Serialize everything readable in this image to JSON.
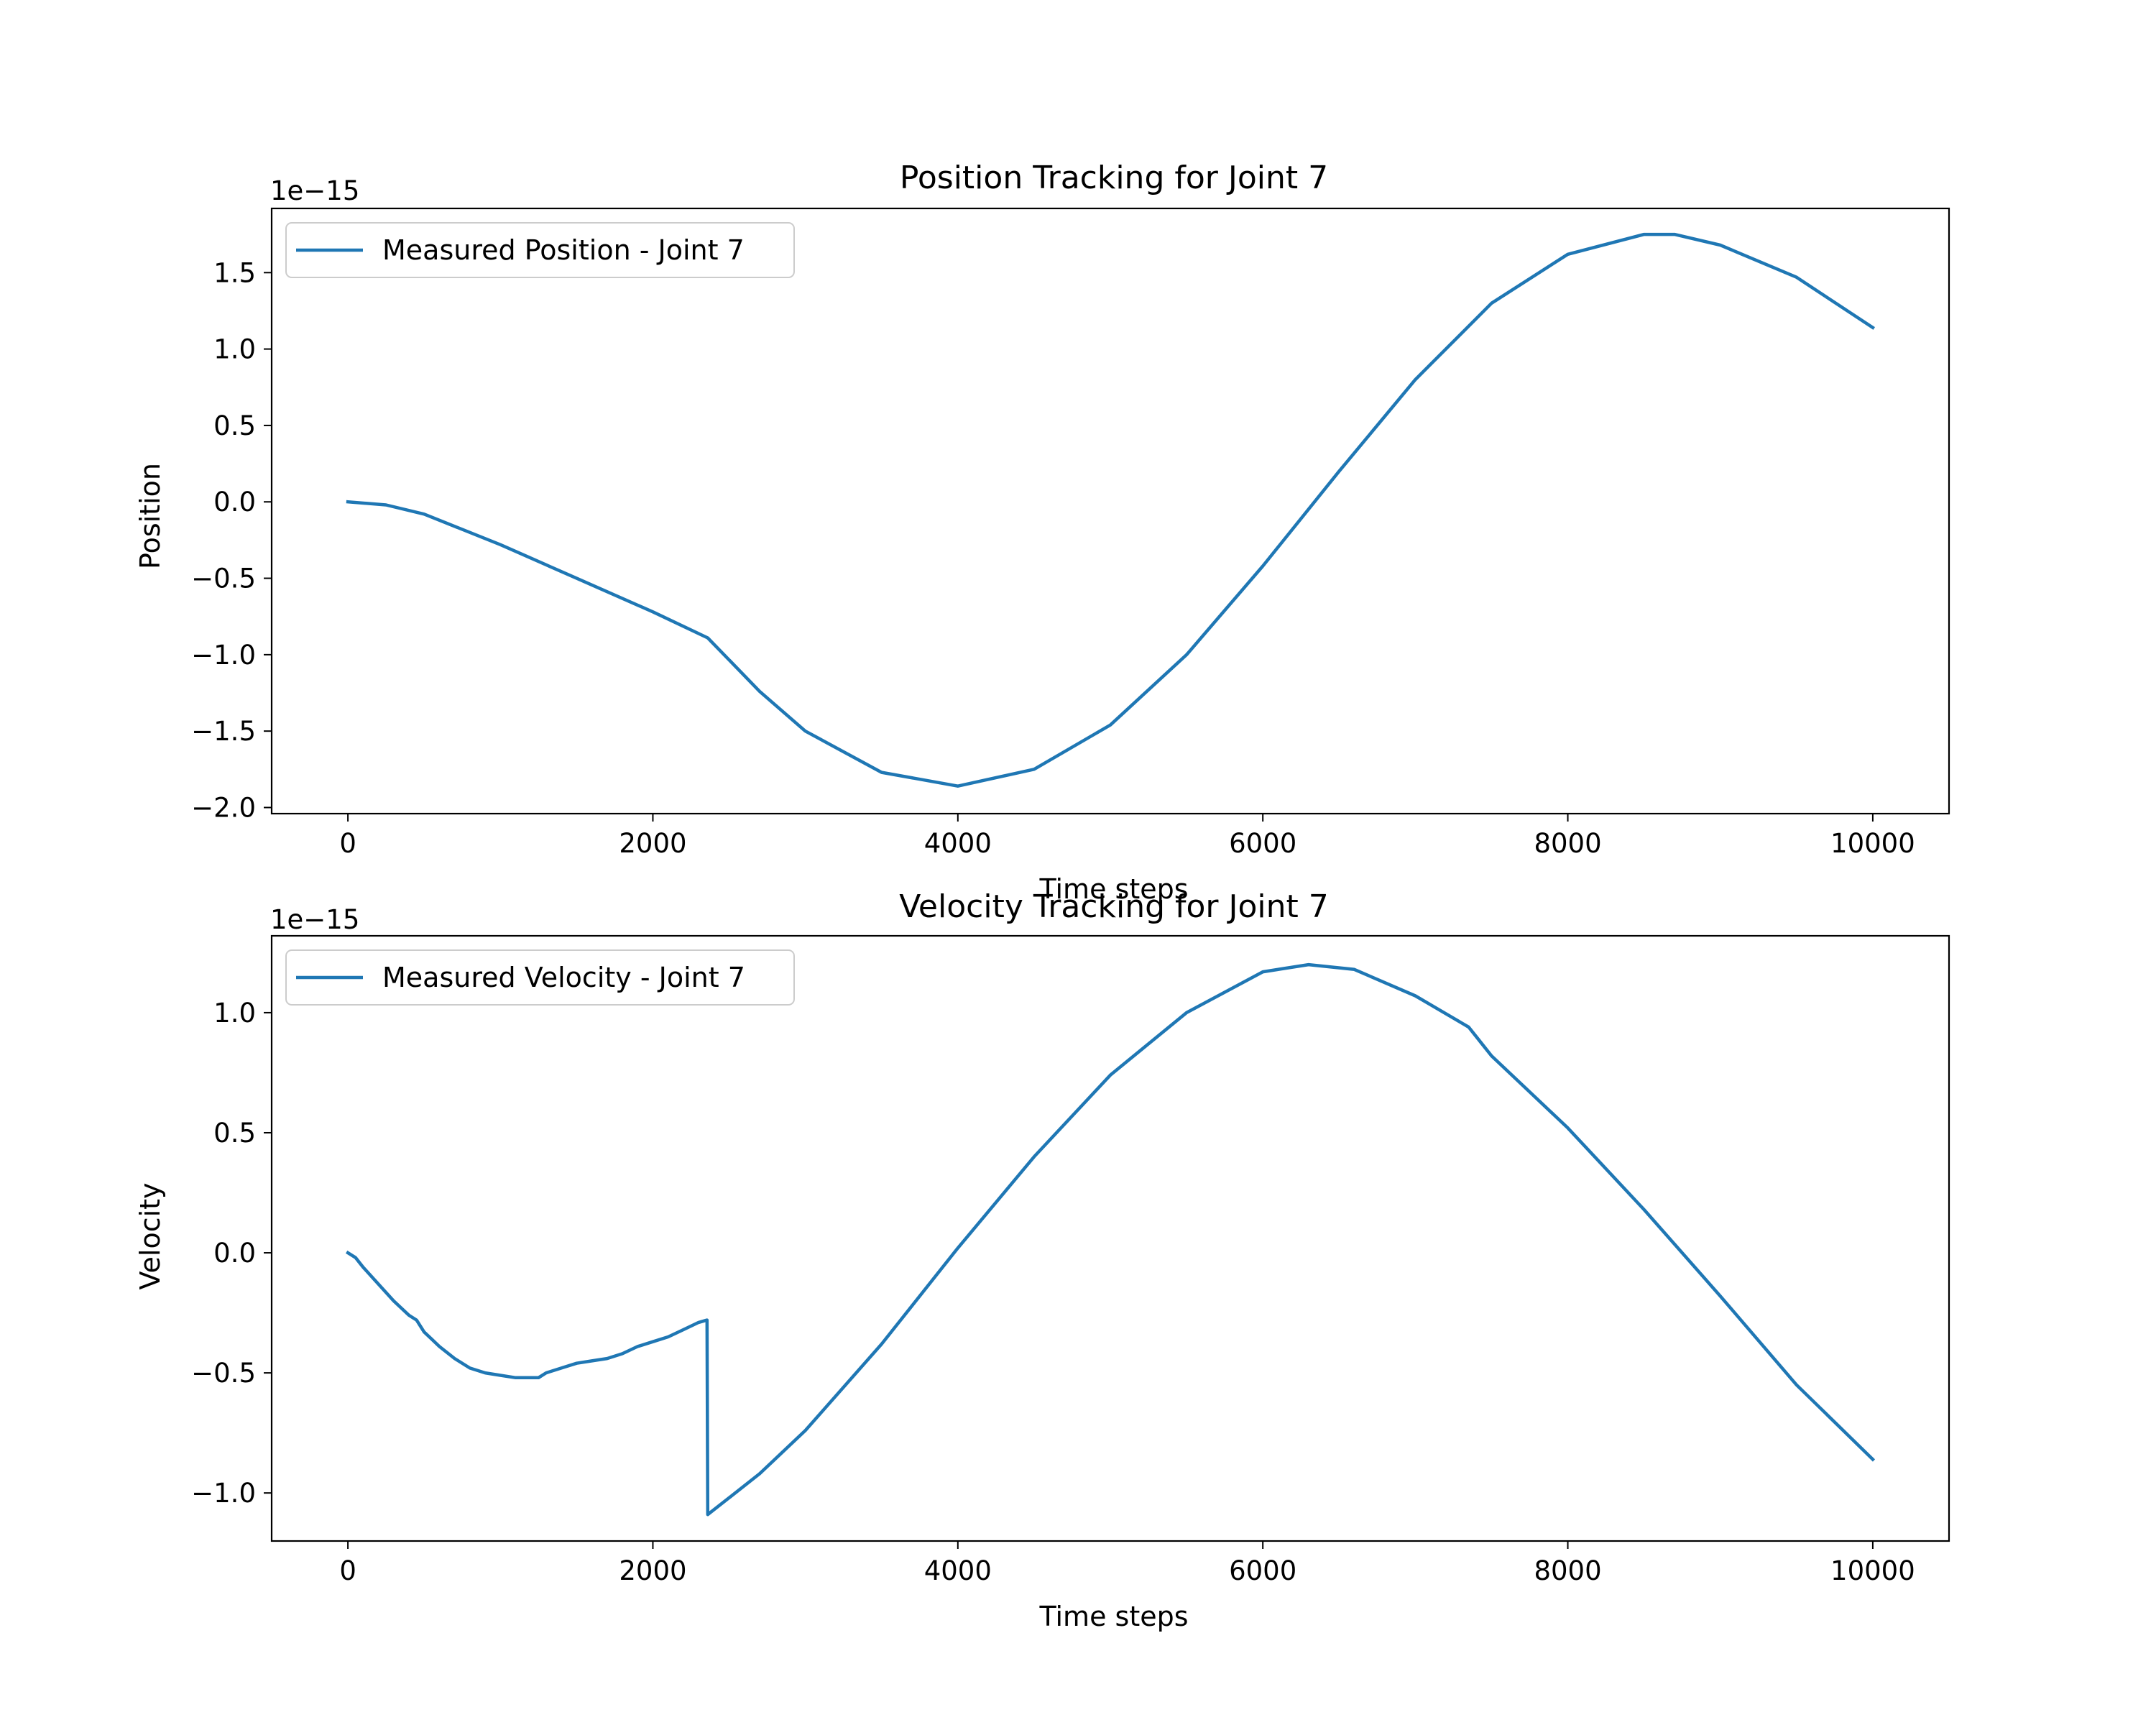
{
  "chart_data": [
    {
      "type": "line",
      "title": "Position Tracking for Joint 7",
      "xlabel": "Time steps",
      "ylabel": "Position",
      "offset_text": "1e−15",
      "xlim": [
        -500,
        10500
      ],
      "ylim": [
        -2.04,
        1.92
      ],
      "xticks": [
        0,
        2000,
        4000,
        6000,
        8000,
        10000
      ],
      "xtick_labels": [
        "0",
        "2000",
        "4000",
        "6000",
        "8000",
        "10000"
      ],
      "yticks": [
        -2.0,
        -1.5,
        -1.0,
        -0.5,
        0.0,
        0.5,
        1.0,
        1.5
      ],
      "ytick_labels": [
        "−2.0",
        "−1.5",
        "−1.0",
        "−0.5",
        "0.0",
        "0.5",
        "1.0",
        "1.5"
      ],
      "grid": false,
      "legend_position": "upper-left",
      "series": [
        {
          "name": "Measured Position - Joint 7",
          "color": "#1f77b4",
          "x": [
            0,
            250,
            500,
            1000,
            1500,
            2000,
            2360,
            2700,
            3000,
            3500,
            4000,
            4500,
            5000,
            5500,
            6000,
            6500,
            7000,
            7500,
            8000,
            8500,
            8700,
            9000,
            9500,
            10000
          ],
          "y": [
            0.0,
            -0.02,
            -0.08,
            -0.28,
            -0.5,
            -0.72,
            -0.89,
            -1.24,
            -1.5,
            -1.77,
            -1.86,
            -1.75,
            -1.46,
            -1.0,
            -0.42,
            0.2,
            0.8,
            1.3,
            1.62,
            1.75,
            1.75,
            1.68,
            1.47,
            1.14
          ]
        }
      ]
    },
    {
      "type": "line",
      "title": "Velocity Tracking for Joint 7",
      "xlabel": "Time steps",
      "ylabel": "Velocity",
      "offset_text": "1e−15",
      "xlim": [
        -500,
        10500
      ],
      "ylim": [
        -1.2,
        1.32
      ],
      "xticks": [
        0,
        2000,
        4000,
        6000,
        8000,
        10000
      ],
      "xtick_labels": [
        "0",
        "2000",
        "4000",
        "6000",
        "8000",
        "10000"
      ],
      "yticks": [
        -1.0,
        -0.5,
        0.0,
        0.5,
        1.0
      ],
      "ytick_labels": [
        "−1.0",
        "−0.5",
        "0.0",
        "0.5",
        "1.0"
      ],
      "grid": false,
      "legend_position": "upper-left",
      "series": [
        {
          "name": "Measured Velocity - Joint 7",
          "color": "#1f77b4",
          "x": [
            0,
            50,
            100,
            200,
            300,
            400,
            450,
            500,
            550,
            600,
            700,
            800,
            900,
            1000,
            1100,
            1200,
            1250,
            1300,
            1400,
            1500,
            1600,
            1700,
            1800,
            1900,
            2000,
            2100,
            2200,
            2300,
            2355,
            2360,
            2500,
            2700,
            3000,
            3500,
            4000,
            4500,
            5000,
            5500,
            6000,
            6300,
            6600,
            7000,
            7350,
            7400,
            7450,
            7500,
            8000,
            8500,
            9000,
            9500,
            10000
          ],
          "y": [
            0.0,
            -0.02,
            -0.06,
            -0.13,
            -0.2,
            -0.26,
            -0.28,
            -0.33,
            -0.36,
            -0.39,
            -0.44,
            -0.48,
            -0.5,
            -0.51,
            -0.52,
            -0.52,
            -0.52,
            -0.5,
            -0.48,
            -0.46,
            -0.45,
            -0.44,
            -0.42,
            -0.39,
            -0.37,
            -0.35,
            -0.32,
            -0.29,
            -0.28,
            -1.09,
            -1.02,
            -0.92,
            -0.74,
            -0.38,
            0.02,
            0.4,
            0.74,
            1.0,
            1.17,
            1.2,
            1.18,
            1.07,
            0.94,
            0.9,
            0.86,
            0.82,
            0.52,
            0.18,
            -0.18,
            -0.55,
            -0.86
          ]
        }
      ]
    }
  ]
}
